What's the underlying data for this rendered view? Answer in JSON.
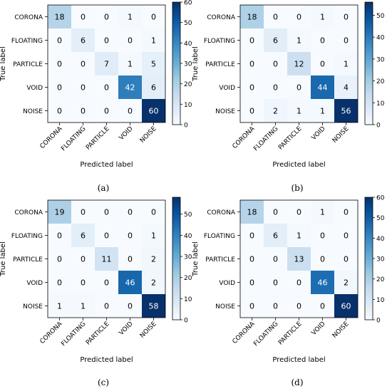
{
  "chart_data": [
    {
      "type": "heatmap",
      "caption": "(a)",
      "xlabel": "Predicted label",
      "ylabel": "True label",
      "categories": [
        "CORONA",
        "FLOATING",
        "PARTICLE",
        "VOID",
        "NOISE"
      ],
      "values": [
        [
          18,
          0,
          0,
          1,
          0
        ],
        [
          0,
          6,
          0,
          0,
          1
        ],
        [
          0,
          0,
          7,
          1,
          5
        ],
        [
          0,
          0,
          0,
          42,
          6
        ],
        [
          0,
          0,
          0,
          0,
          60
        ]
      ],
      "colorbar": {
        "min": 0,
        "max": 60,
        "ticks": [
          0,
          10,
          20,
          30,
          40,
          50,
          60
        ]
      }
    },
    {
      "type": "heatmap",
      "caption": "(b)",
      "xlabel": "Predicted label",
      "ylabel": "True label",
      "categories": [
        "CORONA",
        "FLOATING",
        "PARTICLE",
        "VOID",
        "NOISE"
      ],
      "values": [
        [
          18,
          0,
          0,
          1,
          0
        ],
        [
          0,
          6,
          1,
          0,
          0
        ],
        [
          0,
          0,
          12,
          0,
          1
        ],
        [
          0,
          0,
          0,
          44,
          4
        ],
        [
          0,
          2,
          1,
          1,
          56
        ]
      ],
      "colorbar": {
        "min": 0,
        "max": 56,
        "ticks": [
          0,
          10,
          20,
          30,
          40,
          50
        ]
      }
    },
    {
      "type": "heatmap",
      "caption": "(c)",
      "xlabel": "Predicted label",
      "ylabel": "True label",
      "categories": [
        "CORONA",
        "FLOATING",
        "PARTICLE",
        "VOID",
        "NOISE"
      ],
      "values": [
        [
          19,
          0,
          0,
          0,
          0
        ],
        [
          0,
          6,
          0,
          0,
          1
        ],
        [
          0,
          0,
          11,
          0,
          2
        ],
        [
          0,
          0,
          0,
          46,
          2
        ],
        [
          1,
          1,
          0,
          0,
          58
        ]
      ],
      "colorbar": {
        "min": 0,
        "max": 58,
        "ticks": [
          0,
          10,
          20,
          30,
          40,
          50
        ]
      }
    },
    {
      "type": "heatmap",
      "caption": "(d)",
      "xlabel": "Predicted label",
      "ylabel": "True label",
      "categories": [
        "CORONA",
        "FLOATING",
        "PARTICLE",
        "VOID",
        "NOISE"
      ],
      "values": [
        [
          18,
          0,
          0,
          1,
          0
        ],
        [
          0,
          6,
          1,
          0,
          0
        ],
        [
          0,
          0,
          13,
          0,
          0
        ],
        [
          0,
          0,
          0,
          46,
          2
        ],
        [
          0,
          0,
          0,
          0,
          60
        ]
      ],
      "colorbar": {
        "min": 0,
        "max": 60,
        "ticks": [
          0,
          10,
          20,
          30,
          40,
          50,
          60
        ]
      }
    }
  ]
}
